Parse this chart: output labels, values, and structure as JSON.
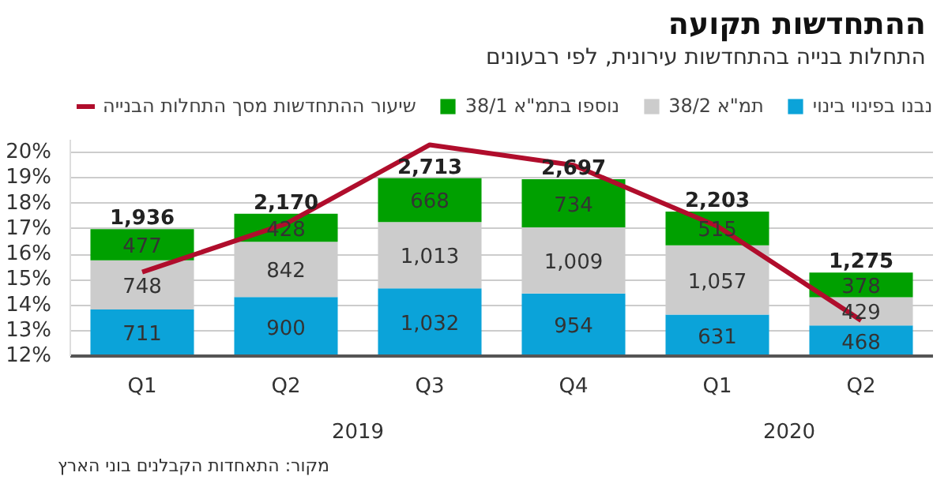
{
  "chart_data": {
    "type": "bar",
    "stacked": true,
    "title": "ההתחדשות תקועה",
    "subtitle": "התחלות בנייה בהתחדשות עירונית, לפי רבעונים",
    "categories": [
      "Q1",
      "Q2",
      "Q3",
      "Q4",
      "Q1",
      "Q2"
    ],
    "series": [
      {
        "name": "נבנו בפינוי בינוי",
        "color": "#0ba3d9",
        "values": [
          711,
          900,
          1032,
          954,
          631,
          468
        ],
        "value_labels": [
          "711",
          "900",
          "1,032",
          "954",
          "631",
          "468"
        ],
        "axis": "y2"
      },
      {
        "name": "תמ\"א 38/2",
        "color": "#cccccc",
        "values": [
          748,
          842,
          1013,
          1009,
          1057,
          429
        ],
        "value_labels": [
          "748",
          "842",
          "1,013",
          "1,009",
          "1,057",
          "429"
        ],
        "axis": "y2"
      },
      {
        "name": "נוספו בתמ\"א 38/1",
        "color": "#00a000",
        "values": [
          477,
          428,
          668,
          734,
          515,
          378
        ],
        "value_labels": [
          "477",
          "428",
          "668",
          "734",
          "515",
          "378"
        ],
        "axis": "y2"
      },
      {
        "name": "שיעור ההתחדשות מסך התחלות הבנייה",
        "type": "line",
        "color": "#b00d2c",
        "values": [
          15.3,
          17.2,
          20.3,
          19.5,
          17.1,
          13.4
        ]
      }
    ],
    "totals": [
      "1,936",
      "2,170",
      "2,713",
      "2,697",
      "2,203",
      "1,275"
    ],
    "ylim": [
      12,
      20.5
    ],
    "yticks": [
      {
        "value": 12,
        "label": "12%"
      },
      {
        "value": 13,
        "label": "13%"
      },
      {
        "value": 14,
        "label": "14%"
      },
      {
        "value": 15,
        "label": "15%"
      },
      {
        "value": 16,
        "label": "16%"
      },
      {
        "value": 17,
        "label": "17%"
      },
      {
        "value": 18,
        "label": "18%"
      },
      {
        "value": 19,
        "label": "19%"
      },
      {
        "value": 20,
        "label": "20%"
      }
    ],
    "y2lim": [
      0,
      3300
    ],
    "grid": "y",
    "legend": "top",
    "annotations": [
      "מקור: התאחדות הקבלנים בוני הארץ",
      "2019",
      "2020"
    ]
  }
}
